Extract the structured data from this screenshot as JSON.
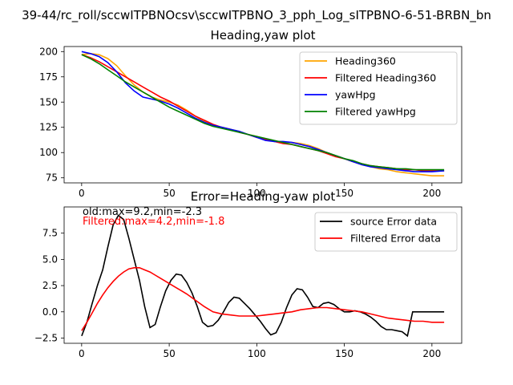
{
  "figure": {
    "suptitle": "39-44/rc_roll/sccwITPBNOcsv\\sccwITPBNO_3_pph_Log_sITPBNO-6-51-BRBN_bn",
    "background": "#ffffff"
  },
  "chart_data": [
    {
      "type": "line",
      "title": "Heading,yaw plot",
      "xlabel": "",
      "ylabel": "",
      "xlim": [
        -10,
        217
      ],
      "ylim": [
        70,
        205
      ],
      "xticks": [
        0,
        50,
        100,
        150,
        200
      ],
      "yticks": [
        75,
        100,
        125,
        150,
        175,
        200
      ],
      "grid": false,
      "legend_position": "top-right",
      "series": [
        {
          "name": "Heading360",
          "color": "#ffa500",
          "x": [
            0,
            5,
            10,
            15,
            20,
            25,
            30,
            35,
            40,
            45,
            50,
            55,
            60,
            65,
            70,
            75,
            80,
            85,
            90,
            95,
            100,
            105,
            110,
            115,
            120,
            125,
            130,
            135,
            140,
            145,
            150,
            155,
            160,
            165,
            170,
            175,
            180,
            185,
            190,
            195,
            200,
            207
          ],
          "values": [
            197,
            198,
            197,
            193,
            186,
            176,
            167,
            160,
            155,
            152,
            150,
            147,
            142,
            136,
            131,
            127,
            125,
            123,
            121,
            118,
            116,
            113,
            111,
            110,
            110,
            109,
            107,
            104,
            100,
            97,
            94,
            91,
            88,
            86,
            84,
            83,
            81,
            80,
            79,
            78,
            77,
            77
          ]
        },
        {
          "name": "Filtered Heading360",
          "color": "#ff0000",
          "x": [
            0,
            5,
            10,
            15,
            20,
            25,
            30,
            35,
            40,
            45,
            50,
            55,
            60,
            65,
            70,
            75,
            80,
            85,
            90,
            95,
            100,
            105,
            110,
            115,
            120,
            125,
            130,
            135,
            140,
            145,
            150,
            155,
            160,
            165,
            170,
            175,
            180,
            185,
            190,
            195,
            200,
            207
          ],
          "values": [
            197,
            194,
            190,
            185,
            180,
            175,
            170,
            165,
            160,
            155,
            151,
            146,
            141,
            136,
            132,
            128,
            125,
            123,
            120,
            118,
            115,
            113,
            111,
            109,
            108,
            106,
            104,
            102,
            99,
            96,
            94,
            91,
            89,
            87,
            86,
            85,
            84,
            83,
            83,
            82,
            82,
            82
          ]
        },
        {
          "name": "yawHpg",
          "color": "#0000ff",
          "x": [
            0,
            5,
            10,
            15,
            20,
            25,
            30,
            35,
            40,
            45,
            50,
            55,
            60,
            65,
            70,
            75,
            80,
            85,
            90,
            95,
            100,
            105,
            110,
            115,
            120,
            125,
            130,
            135,
            140,
            145,
            150,
            155,
            160,
            165,
            170,
            175,
            180,
            185,
            190,
            195,
            200,
            207
          ],
          "values": [
            200,
            198,
            195,
            189,
            180,
            169,
            161,
            155,
            153,
            151,
            148,
            144,
            139,
            134,
            130,
            127,
            125,
            123,
            121,
            118,
            115,
            112,
            111,
            111,
            110,
            108,
            106,
            103,
            100,
            97,
            94,
            91,
            88,
            86,
            85,
            84,
            83,
            82,
            81,
            81,
            81,
            82
          ]
        },
        {
          "name": "Filtered yawHpg",
          "color": "#008000",
          "x": [
            0,
            5,
            10,
            15,
            20,
            25,
            30,
            35,
            40,
            45,
            50,
            55,
            60,
            65,
            70,
            75,
            80,
            85,
            90,
            95,
            100,
            105,
            110,
            115,
            120,
            125,
            130,
            135,
            140,
            145,
            150,
            155,
            160,
            165,
            170,
            175,
            180,
            185,
            190,
            195,
            200,
            207
          ],
          "values": [
            197,
            193,
            188,
            182,
            176,
            170,
            165,
            160,
            155,
            150,
            145,
            141,
            137,
            133,
            129,
            126,
            124,
            122,
            120,
            118,
            116,
            114,
            112,
            110,
            108,
            106,
            104,
            102,
            100,
            97,
            94,
            92,
            89,
            87,
            86,
            85,
            84,
            84,
            83,
            83,
            83,
            83
          ]
        }
      ]
    },
    {
      "type": "line",
      "title": "Error=Heading-yaw plot",
      "xlabel": "",
      "ylabel": "",
      "xlim": [
        -10,
        217
      ],
      "ylim": [
        -3,
        10
      ],
      "xticks": [
        0,
        50,
        100,
        150,
        200
      ],
      "yticks": [
        -2.5,
        0.0,
        2.5,
        5.0,
        7.5
      ],
      "ytick_labels": [
        "−2.5",
        "0.0",
        "2.5",
        "5.0",
        "7.5"
      ],
      "grid": false,
      "legend_position": "top-right",
      "annotations": [
        {
          "text": "old:max=9.2,min=-2.3",
          "color": "#000000"
        },
        {
          "text": "Filtered:max=4.2,min=-1.8",
          "color": "#ff0000"
        }
      ],
      "series": [
        {
          "name": "source Error data",
          "color": "#000000",
          "x": [
            0,
            3,
            6,
            9,
            12,
            15,
            18,
            21,
            24,
            27,
            30,
            33,
            36,
            39,
            42,
            45,
            48,
            51,
            54,
            57,
            60,
            63,
            66,
            69,
            72,
            75,
            78,
            81,
            84,
            87,
            90,
            93,
            96,
            99,
            102,
            105,
            108,
            111,
            114,
            117,
            120,
            123,
            126,
            129,
            132,
            135,
            138,
            141,
            144,
            147,
            150,
            153,
            156,
            159,
            162,
            165,
            168,
            171,
            174,
            177,
            180,
            183,
            186,
            189,
            192,
            195,
            196,
            200,
            207
          ],
          "values": [
            -2.3,
            -1.0,
            0.8,
            2.5,
            4.0,
            6.2,
            8.3,
            9.2,
            8.8,
            7.0,
            5.0,
            3.0,
            0.5,
            -1.5,
            -1.2,
            0.5,
            2.0,
            3.0,
            3.6,
            3.5,
            2.8,
            1.8,
            0.5,
            -1.0,
            -1.4,
            -1.3,
            -0.8,
            0.0,
            0.9,
            1.4,
            1.3,
            0.8,
            0.3,
            -0.3,
            -0.9,
            -1.6,
            -2.2,
            -2.0,
            -1.0,
            0.4,
            1.6,
            2.2,
            2.1,
            1.4,
            0.5,
            0.4,
            0.8,
            0.9,
            0.7,
            0.3,
            0.0,
            0.0,
            0.1,
            0.0,
            -0.2,
            -0.5,
            -0.9,
            -1.4,
            -1.7,
            -1.7,
            -1.8,
            -1.9,
            -2.3,
            0.0,
            0.0,
            0.0,
            0.0,
            0.0,
            0.0
          ]
        },
        {
          "name": "Filtered Error data",
          "color": "#ff0000",
          "x": [
            0,
            3,
            6,
            9,
            12,
            15,
            18,
            21,
            24,
            27,
            30,
            33,
            36,
            39,
            42,
            45,
            48,
            51,
            54,
            57,
            60,
            65,
            70,
            75,
            80,
            85,
            90,
            95,
            100,
            105,
            110,
            115,
            120,
            125,
            130,
            135,
            140,
            145,
            150,
            155,
            160,
            165,
            170,
            175,
            180,
            185,
            190,
            195,
            200,
            207
          ],
          "values": [
            -1.8,
            -1.0,
            -0.1,
            0.8,
            1.6,
            2.3,
            2.9,
            3.4,
            3.8,
            4.1,
            4.2,
            4.2,
            4.0,
            3.8,
            3.5,
            3.2,
            2.9,
            2.6,
            2.3,
            2.0,
            1.7,
            1.1,
            0.5,
            0.0,
            -0.2,
            -0.3,
            -0.4,
            -0.4,
            -0.4,
            -0.3,
            -0.2,
            -0.1,
            0.0,
            0.2,
            0.3,
            0.4,
            0.4,
            0.3,
            0.2,
            0.1,
            0.0,
            -0.2,
            -0.4,
            -0.6,
            -0.7,
            -0.8,
            -0.9,
            -0.9,
            -1.0,
            -1.0
          ]
        }
      ]
    }
  ]
}
